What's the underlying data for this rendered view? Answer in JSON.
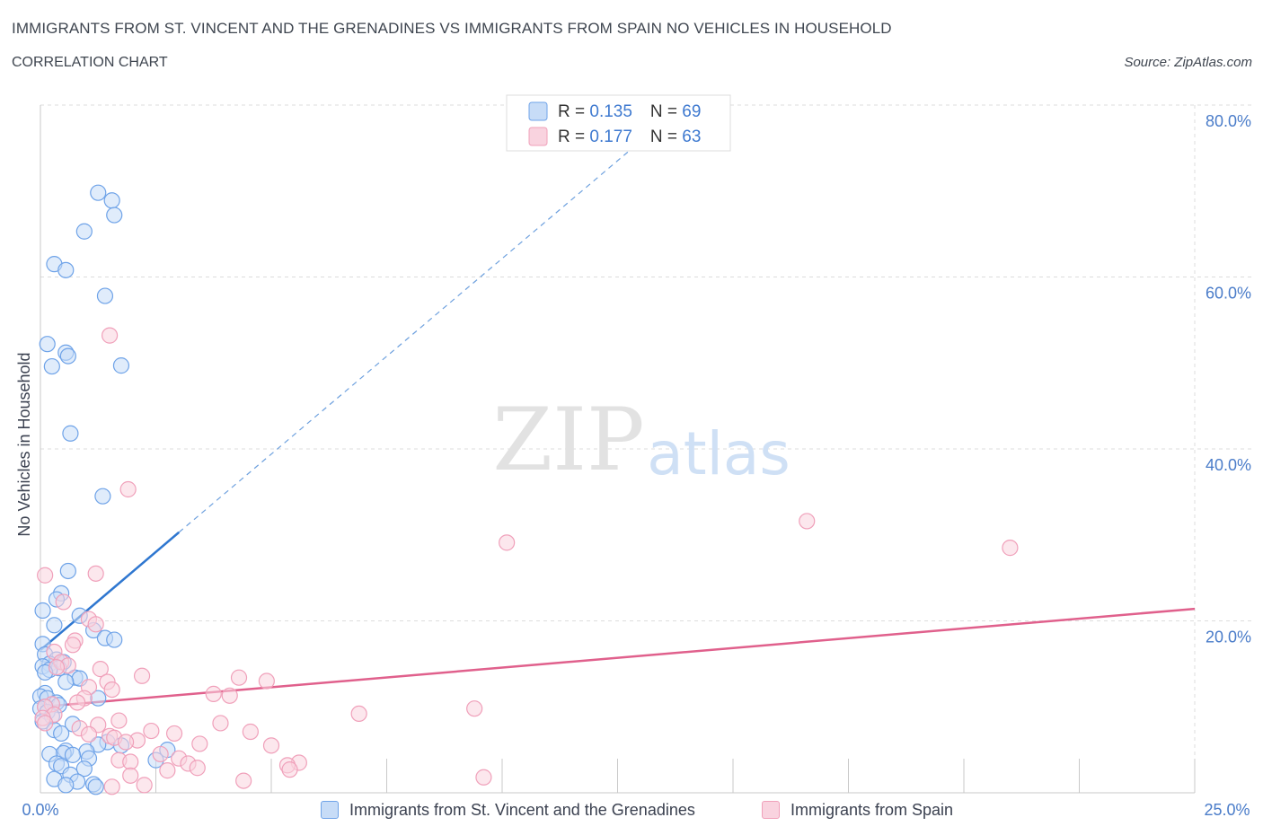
{
  "header": {
    "title": "IMMIGRANTS FROM ST. VINCENT AND THE GRENADINES VS IMMIGRANTS FROM SPAIN NO VEHICLES IN HOUSEHOLD",
    "subtitle": "CORRELATION CHART",
    "source": "Source: ZipAtlas.com"
  },
  "colors": {
    "blue": "#6fa3e8",
    "blue_fill": "#c7dcf7",
    "blue_line": "#2f77d0",
    "pink": "#f0a0ba",
    "pink_fill": "#f9d3df",
    "pink_line": "#e0608c",
    "axis_label": "#4a7cc9",
    "grid": "#dddddd"
  },
  "watermark": {
    "zip": "ZIP",
    "atlas": "atlas"
  },
  "stats_legend": [
    {
      "r_label": "R = ",
      "r_value": "0.135",
      "n_label": "N = ",
      "n_value": "69"
    },
    {
      "r_label": "R = ",
      "r_value": "0.177",
      "n_label": "N = ",
      "n_value": "63"
    }
  ],
  "chart_data": {
    "type": "scatter",
    "title": "IMMIGRANTS FROM ST. VINCENT AND THE GRENADINES VS IMMIGRANTS FROM SPAIN NO VEHICLES IN HOUSEHOLD",
    "subtitle": "CORRELATION CHART",
    "xlabel": "",
    "ylabel": "No Vehicles in Household",
    "xlim": [
      0,
      25
    ],
    "ylim": [
      0,
      80
    ],
    "x_tick_labels": [
      "0.0%",
      "25.0%"
    ],
    "y_ticks": [
      20,
      40,
      60,
      80
    ],
    "y_tick_labels": [
      "20.0%",
      "40.0%",
      "60.0%",
      "80.0%"
    ],
    "grid": true,
    "series": [
      {
        "name": "Immigrants from St. Vincent and the Grenadines",
        "color": "blue",
        "R": 0.135,
        "N": 69,
        "trend": {
          "x0": 0,
          "y0": 16.6,
          "x1": 3.0,
          "y1": 30.3,
          "dash_to_x": 13.0,
          "dash_to_y": 75.8
        },
        "points": [
          [
            1.25,
            69.8
          ],
          [
            1.55,
            68.9
          ],
          [
            1.6,
            67.2
          ],
          [
            0.95,
            65.3
          ],
          [
            0.3,
            61.5
          ],
          [
            0.55,
            60.8
          ],
          [
            1.4,
            57.8
          ],
          [
            0.15,
            52.2
          ],
          [
            0.55,
            51.2
          ],
          [
            0.6,
            50.8
          ],
          [
            0.25,
            49.6
          ],
          [
            1.75,
            49.7
          ],
          [
            0.65,
            41.8
          ],
          [
            1.35,
            34.5
          ],
          [
            0.6,
            25.8
          ],
          [
            0.45,
            23.2
          ],
          [
            0.35,
            22.5
          ],
          [
            0.05,
            21.2
          ],
          [
            0.85,
            20.6
          ],
          [
            0.3,
            19.5
          ],
          [
            1.15,
            18.9
          ],
          [
            1.4,
            18.0
          ],
          [
            1.6,
            17.8
          ],
          [
            0.05,
            17.3
          ],
          [
            0.1,
            16.1
          ],
          [
            0.35,
            15.5
          ],
          [
            0.5,
            15.2
          ],
          [
            0.2,
            15.0
          ],
          [
            0.05,
            14.7
          ],
          [
            0.4,
            14.5
          ],
          [
            0.2,
            14.3
          ],
          [
            0.1,
            14.0
          ],
          [
            0.75,
            13.4
          ],
          [
            0.85,
            13.3
          ],
          [
            0.55,
            12.9
          ],
          [
            0.1,
            11.6
          ],
          [
            0.0,
            11.2
          ],
          [
            0.15,
            11.0
          ],
          [
            1.25,
            11.0
          ],
          [
            0.35,
            10.5
          ],
          [
            0.4,
            10.2
          ],
          [
            0.1,
            10.0
          ],
          [
            0.0,
            9.8
          ],
          [
            0.15,
            9.4
          ],
          [
            0.25,
            8.9
          ],
          [
            0.05,
            8.3
          ],
          [
            0.7,
            8.0
          ],
          [
            0.3,
            7.3
          ],
          [
            0.45,
            6.9
          ],
          [
            1.45,
            5.9
          ],
          [
            1.25,
            5.6
          ],
          [
            1.75,
            5.5
          ],
          [
            2.75,
            5.0
          ],
          [
            0.55,
            4.9
          ],
          [
            1.0,
            4.8
          ],
          [
            0.5,
            4.6
          ],
          [
            0.2,
            4.5
          ],
          [
            0.7,
            4.4
          ],
          [
            1.05,
            4.0
          ],
          [
            2.5,
            3.8
          ],
          [
            0.35,
            3.4
          ],
          [
            0.45,
            3.1
          ],
          [
            0.95,
            2.8
          ],
          [
            0.65,
            2.1
          ],
          [
            0.3,
            1.6
          ],
          [
            0.8,
            1.3
          ],
          [
            1.15,
            1.0
          ],
          [
            0.55,
            0.9
          ],
          [
            1.2,
            0.7
          ]
        ]
      },
      {
        "name": "Immigrants from Spain",
        "color": "pink",
        "R": 0.177,
        "N": 63,
        "trend": {
          "x0": 0,
          "y0": 10.0,
          "x1": 25.0,
          "y1": 21.4
        },
        "points": [
          [
            1.5,
            53.2
          ],
          [
            1.9,
            35.3
          ],
          [
            16.6,
            31.6
          ],
          [
            10.1,
            29.1
          ],
          [
            21.0,
            28.5
          ],
          [
            0.1,
            25.3
          ],
          [
            1.2,
            25.5
          ],
          [
            0.5,
            22.2
          ],
          [
            1.05,
            20.2
          ],
          [
            1.2,
            19.6
          ],
          [
            0.75,
            17.7
          ],
          [
            0.7,
            17.2
          ],
          [
            0.3,
            16.4
          ],
          [
            0.45,
            15.2
          ],
          [
            0.6,
            14.8
          ],
          [
            0.35,
            14.6
          ],
          [
            1.3,
            14.4
          ],
          [
            2.2,
            13.6
          ],
          [
            4.3,
            13.4
          ],
          [
            4.9,
            13.0
          ],
          [
            1.45,
            12.9
          ],
          [
            1.05,
            12.3
          ],
          [
            1.55,
            12.0
          ],
          [
            3.75,
            11.5
          ],
          [
            4.1,
            11.3
          ],
          [
            0.95,
            11.0
          ],
          [
            0.8,
            10.5
          ],
          [
            0.25,
            10.3
          ],
          [
            0.1,
            10.0
          ],
          [
            9.4,
            9.8
          ],
          [
            0.3,
            9.1
          ],
          [
            6.9,
            9.2
          ],
          [
            0.05,
            8.7
          ],
          [
            1.7,
            8.4
          ],
          [
            0.1,
            8.1
          ],
          [
            1.25,
            7.9
          ],
          [
            3.9,
            8.1
          ],
          [
            0.85,
            7.5
          ],
          [
            2.4,
            7.2
          ],
          [
            2.9,
            6.9
          ],
          [
            4.55,
            7.1
          ],
          [
            1.05,
            6.8
          ],
          [
            1.5,
            6.6
          ],
          [
            1.6,
            6.4
          ],
          [
            2.1,
            6.1
          ],
          [
            1.85,
            5.9
          ],
          [
            3.45,
            5.7
          ],
          [
            5.0,
            5.5
          ],
          [
            2.6,
            4.5
          ],
          [
            3.0,
            4.0
          ],
          [
            1.7,
            3.8
          ],
          [
            1.95,
            3.6
          ],
          [
            3.2,
            3.4
          ],
          [
            5.6,
            3.5
          ],
          [
            5.35,
            3.2
          ],
          [
            3.4,
            2.9
          ],
          [
            2.75,
            2.6
          ],
          [
            5.4,
            2.7
          ],
          [
            1.95,
            2.0
          ],
          [
            9.6,
            1.8
          ],
          [
            4.4,
            1.4
          ],
          [
            2.25,
            0.9
          ],
          [
            1.55,
            0.7
          ]
        ]
      }
    ]
  },
  "legend_bottom": [
    {
      "label": "Immigrants from St. Vincent and the Grenadines"
    },
    {
      "label": "Immigrants from Spain"
    }
  ]
}
